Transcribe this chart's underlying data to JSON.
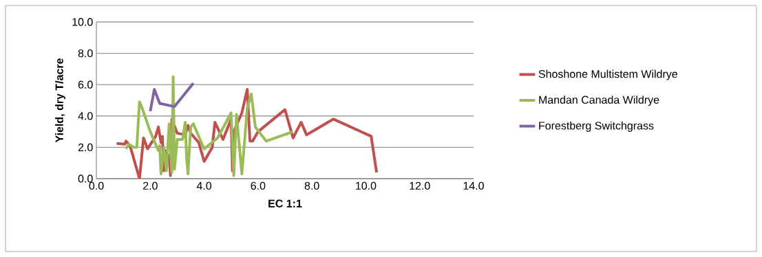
{
  "chart_data": {
    "type": "line",
    "xlabel": "EC 1:1",
    "ylabel": "Yield, dry T/acre",
    "xlim": [
      0,
      14
    ],
    "ylim": [
      0,
      10
    ],
    "xticks": [
      {
        "value": 0,
        "label": "0.0"
      },
      {
        "value": 2,
        "label": "2.0"
      },
      {
        "value": 4,
        "label": "4.0"
      },
      {
        "value": 6,
        "label": "6.0"
      },
      {
        "value": 8,
        "label": "8.0"
      },
      {
        "value": 10,
        "label": "10.0"
      },
      {
        "value": 12,
        "label": "12.0"
      },
      {
        "value": 14,
        "label": "14.0"
      }
    ],
    "yticks": [
      {
        "value": 0,
        "label": "0.0"
      },
      {
        "value": 2,
        "label": "2.0"
      },
      {
        "value": 4,
        "label": "4.0"
      },
      {
        "value": 6,
        "label": "6.0"
      },
      {
        "value": 8,
        "label": "8.0"
      },
      {
        "value": 10,
        "label": "10.0"
      }
    ],
    "grid": "y",
    "legend": "right",
    "marker": "none",
    "line_style": "solid",
    "series": [
      {
        "name": "Shoshone Multistem Wildrye",
        "color": "#c0504d",
        "x": [
          0.75,
          1.05,
          1.1,
          1.25,
          1.6,
          1.75,
          1.9,
          2.2,
          2.3,
          2.4,
          2.45,
          2.5,
          2.55,
          2.7,
          2.75,
          2.8,
          3.0,
          3.3,
          3.4,
          3.5,
          3.8,
          4.0,
          4.3,
          4.4,
          4.7,
          5.0,
          5.05,
          5.1,
          5.4,
          5.6,
          5.7,
          5.8,
          6.0,
          7.0,
          7.3,
          7.6,
          7.8,
          8.8,
          10.2,
          10.4
        ],
        "values": [
          2.25,
          2.2,
          2.4,
          2.1,
          0.0,
          2.6,
          1.9,
          2.7,
          3.3,
          2.3,
          2.7,
          0.5,
          1.8,
          1.4,
          0.2,
          3.8,
          2.9,
          2.8,
          3.4,
          2.9,
          2.3,
          1.1,
          2.0,
          3.6,
          2.5,
          3.8,
          0.5,
          3.0,
          4.2,
          5.7,
          2.4,
          2.4,
          3.0,
          4.4,
          2.6,
          3.6,
          2.8,
          3.8,
          2.7,
          0.4
        ]
      },
      {
        "name": "Mandan Canada Wildrye",
        "color": "#9bbb59",
        "x": [
          1.1,
          1.2,
          1.4,
          1.5,
          1.6,
          1.7,
          2.0,
          2.3,
          2.35,
          2.4,
          2.5,
          2.6,
          2.7,
          2.8,
          2.85,
          2.9,
          3.0,
          3.2,
          3.3,
          3.35,
          3.4,
          3.5,
          3.6,
          4.0,
          4.5,
          5.0,
          5.1,
          5.2,
          5.4,
          5.6,
          5.75,
          5.9,
          6.3,
          7.3
        ],
        "values": [
          1.9,
          2.2,
          2.0,
          2.0,
          4.9,
          4.5,
          3.0,
          1.8,
          2.1,
          0.3,
          2.0,
          0.5,
          3.5,
          0.4,
          6.5,
          0.6,
          2.5,
          2.5,
          3.6,
          1.3,
          0.3,
          3.3,
          3.5,
          1.9,
          2.6,
          4.2,
          0.2,
          4.1,
          0.3,
          4.5,
          5.4,
          3.3,
          2.4,
          3.0
        ]
      },
      {
        "name": "Forestberg Switchgrass",
        "color": "#8064a2",
        "x": [
          2.0,
          2.15,
          2.35,
          2.9,
          3.6
        ],
        "values": [
          4.3,
          5.7,
          4.8,
          4.6,
          6.1
        ]
      }
    ]
  }
}
